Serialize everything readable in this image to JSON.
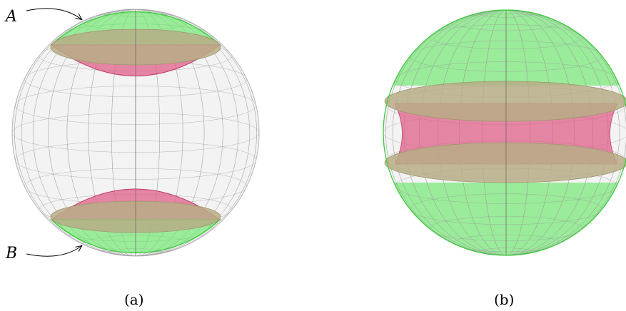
{
  "panel_a": {
    "label_top": "A",
    "label_bottom": "B",
    "caption": "(a)"
  },
  "panel_b": {
    "caption": "(b)"
  },
  "colors": {
    "cap_green": "#5fe65f",
    "cap_green_edge": "#33cc33",
    "band_tan": "#b7ad86",
    "inner_pink": "#e0608a",
    "wire_grey": "#9a9a9a",
    "sphere_fill": "#f2f2f2"
  }
}
